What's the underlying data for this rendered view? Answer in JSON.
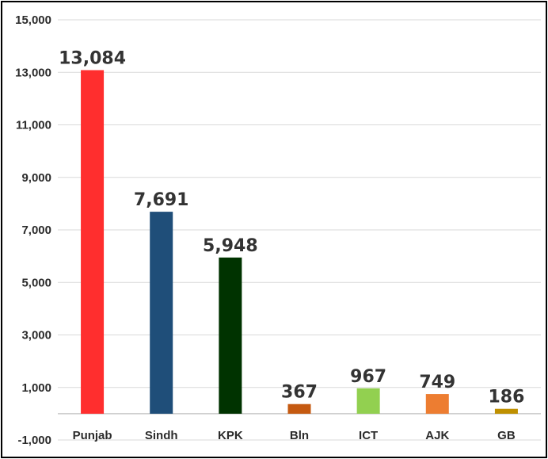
{
  "chart_data": {
    "type": "bar",
    "title": "",
    "xlabel": "",
    "ylabel": "",
    "ylim": [
      -1000,
      15000
    ],
    "yticks": [
      -1000,
      1000,
      3000,
      5000,
      7000,
      9000,
      11000,
      13000,
      15000
    ],
    "ytick_labels": [
      "-1,000",
      "1,000",
      "3,000",
      "5,000",
      "7,000",
      "9,000",
      "11,000",
      "13,000",
      "15,000"
    ],
    "grid": true,
    "legend": "none",
    "categories": [
      "Punjab",
      "Sindh",
      "KPK",
      "Bln",
      "ICT",
      "AJK",
      "GB"
    ],
    "values": [
      13084,
      7691,
      5948,
      367,
      967,
      749,
      186
    ],
    "data_labels": [
      "13,084",
      "7,691",
      "5,948",
      "367",
      "967",
      "749",
      "186"
    ],
    "colors": [
      "#ff2e2e",
      "#1f4e79",
      "#003300",
      "#c55a11",
      "#92d050",
      "#ed7d31",
      "#bf9000"
    ]
  }
}
